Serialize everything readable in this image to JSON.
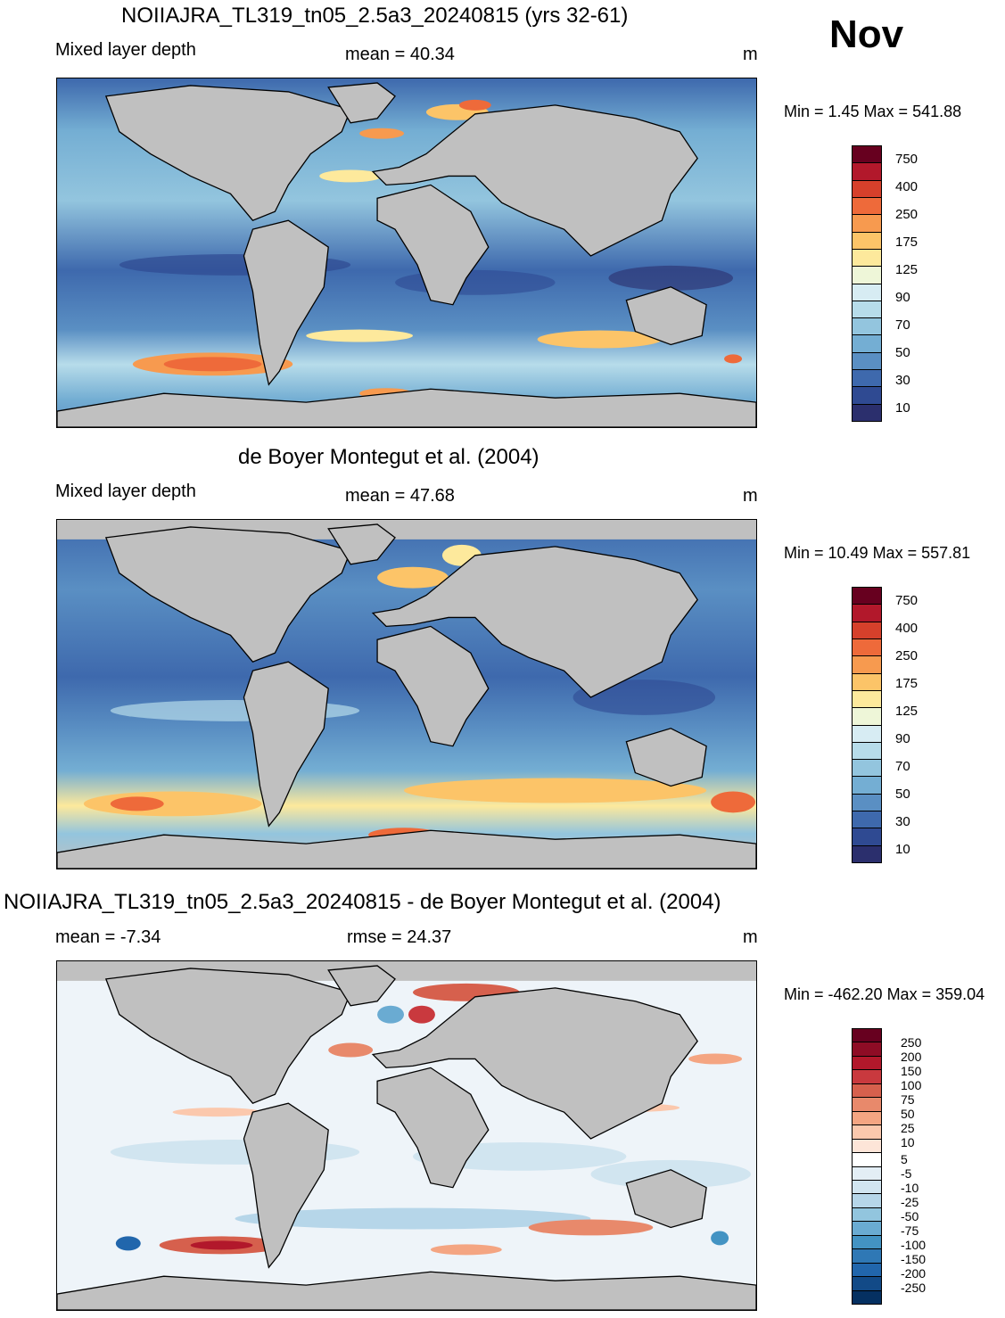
{
  "header": {
    "month": "Nov"
  },
  "panels": [
    {
      "title": "NOIIAJRA_TL319_tn05_2.5a3_20240815 (yrs 32-61)",
      "left_label": "Mixed layer depth",
      "center_label": "mean =  40.34",
      "units": "m",
      "minmax": "Min =    1.45 Max = 541.88",
      "colorbar": {
        "labels": [
          "750",
          "400",
          "250",
          "175",
          "125",
          "90",
          "70",
          "50",
          "30",
          "10"
        ],
        "colors": [
          "#67001f",
          "#b2182b",
          "#d6402b",
          "#ee6a3a",
          "#f79a4f",
          "#fcc468",
          "#fde99c",
          "#eef6d8",
          "#d7ecf3",
          "#b7dcea",
          "#93c5de",
          "#74aed3",
          "#5a8fc3",
          "#3e69ad",
          "#2f4a92",
          "#2b2f6d"
        ]
      },
      "map": {
        "ocean": "#6aa3cf",
        "land": "#c0c0c0"
      }
    },
    {
      "title": "de Boyer Montegut et al. (2004)",
      "left_label": "Mixed layer depth",
      "center_label": "mean =  47.68",
      "units": "m",
      "minmax": "Min =  10.49 Max = 557.81",
      "colorbar": {
        "labels": [
          "750",
          "400",
          "250",
          "175",
          "125",
          "90",
          "70",
          "50",
          "30",
          "10"
        ],
        "colors": [
          "#67001f",
          "#b2182b",
          "#d6402b",
          "#ee6a3a",
          "#f79a4f",
          "#fcc468",
          "#fde99c",
          "#eef6d8",
          "#d7ecf3",
          "#b7dcea",
          "#93c5de",
          "#74aed3",
          "#5a8fc3",
          "#3e69ad",
          "#2f4a92",
          "#2b2f6d"
        ]
      },
      "map": {
        "ocean": "#5b8ec4",
        "land": "#c0c0c0"
      }
    },
    {
      "title": "NOIIAJRA_TL319_tn05_2.5a3_20240815 - de Boyer Montegut et al. (2004)",
      "left_label": "mean =  -7.34",
      "center_label": "rmse =  24.37",
      "units": "m",
      "minmax": "Min = -462.20 Max = 359.04",
      "colorbar": {
        "labels": [
          "250",
          "200",
          "150",
          "100",
          "75",
          "50",
          "25",
          "10",
          "5",
          "-5",
          "-10",
          "-25",
          "-50",
          "-75",
          "-100",
          "-150",
          "-200",
          "-250"
        ],
        "colors": [
          "#67001f",
          "#8e0c25",
          "#b2182b",
          "#c9393e",
          "#d6604d",
          "#e8896b",
          "#f4a582",
          "#fbc8ad",
          "#fde5d8",
          "#ffffff",
          "#e3eef5",
          "#d1e5f0",
          "#b6d6e9",
          "#92c5de",
          "#6aabd2",
          "#4393c3",
          "#2f78b5",
          "#2166ac",
          "#124a87",
          "#053061"
        ]
      },
      "map": {
        "ocean": "#eef4f9",
        "land": "#c0c0c0"
      }
    }
  ]
}
